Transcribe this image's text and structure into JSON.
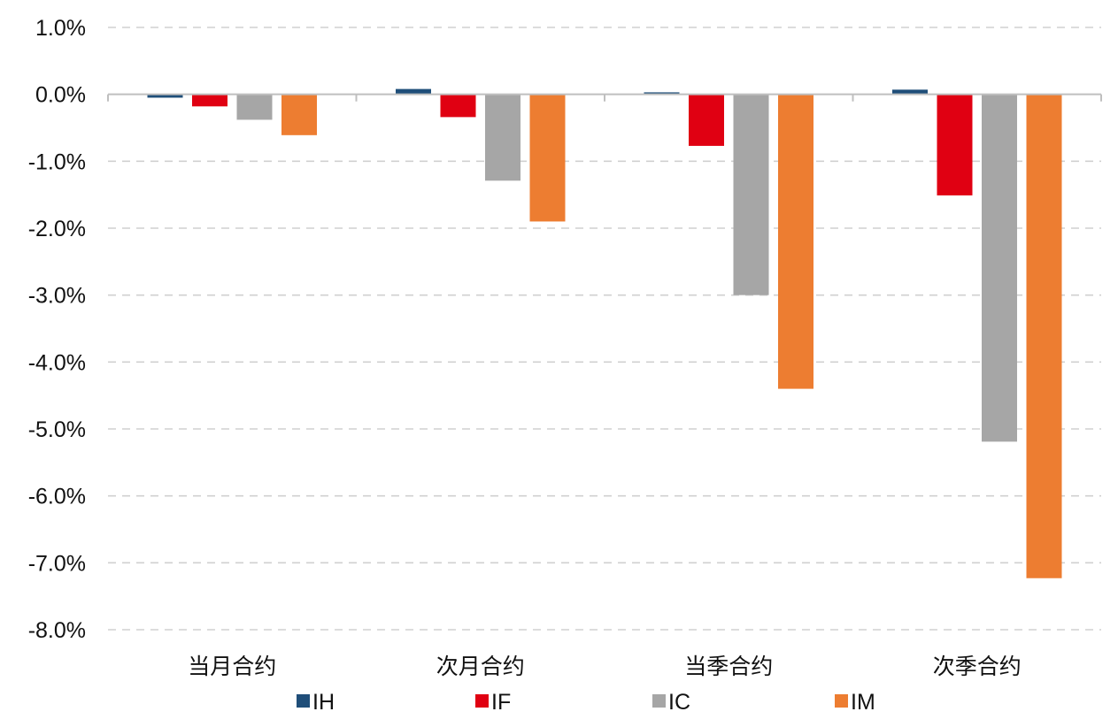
{
  "chart_data": {
    "type": "bar",
    "categories": [
      "当月合约",
      "次月合约",
      "当季合约",
      "次季合约"
    ],
    "series": [
      {
        "name": "IH",
        "color": "#1f4e79",
        "values": [
          -0.05,
          0.08,
          0.03,
          0.07
        ]
      },
      {
        "name": "IF",
        "color": "#e00012",
        "values": [
          -0.18,
          -0.34,
          -0.77,
          -1.51
        ]
      },
      {
        "name": "IC",
        "color": "#a6a6a6",
        "values": [
          -0.38,
          -1.29,
          -3.0,
          -5.19
        ]
      },
      {
        "name": "IM",
        "color": "#ed7d31",
        "values": [
          -0.61,
          -1.9,
          -4.4,
          -7.23
        ]
      }
    ],
    "ylim": [
      -8,
      1
    ],
    "yticks": [
      1,
      0,
      -1,
      -2,
      -3,
      -4,
      -5,
      -6,
      -7,
      -8
    ],
    "ytick_labels": [
      "1.0%",
      "0.0%",
      "-1.0%",
      "-2.0%",
      "-3.0%",
      "-4.0%",
      "-5.0%",
      "-6.0%",
      "-7.0%",
      "-8.0%"
    ],
    "grid": true,
    "legend_position": "bottom"
  }
}
